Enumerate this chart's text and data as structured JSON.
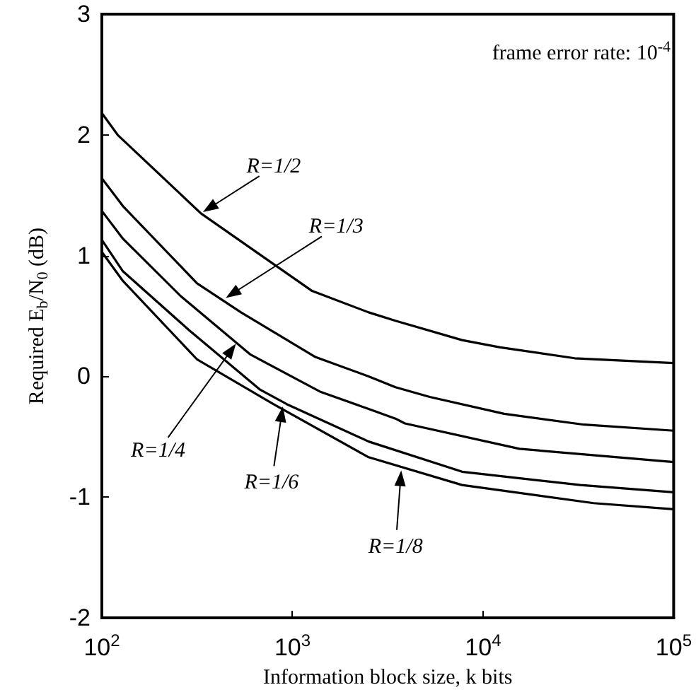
{
  "chart_data": {
    "type": "line",
    "xlabel": "Information block size, k bits",
    "ylabel": "Required E$_{b}$/N$_{0}$ (dB)",
    "log": "x",
    "marker": "none",
    "line_style": "solid",
    "xlim": [
      100,
      100000
    ],
    "xticks": [
      {
        "value": 100,
        "label": "10$^{2}$"
      },
      {
        "value": 1000,
        "label": "10$^{3}$"
      },
      {
        "value": 10000,
        "label": "10$^{4}$"
      },
      {
        "value": 100000,
        "label": "10$^{5}$"
      }
    ],
    "ylim": [
      -2,
      3
    ],
    "yticks": [
      -2,
      -1,
      0,
      1,
      2,
      3
    ],
    "series": [
      {
        "color": "#000000",
        "x": [
          100,
          121,
          331,
          1260,
          2510,
          3470,
          7760,
          12300,
          30200,
          100000
        ],
        "values": [
          2.18,
          2.0,
          1.35,
          0.71,
          0.53,
          0.46,
          0.3,
          0.24,
          0.15,
          0.11
        ]
      },
      {
        "color": "#000000",
        "x": [
          100,
          129,
          316,
          537,
          1320,
          2510,
          3470,
          5250,
          12900,
          33900,
          100000
        ],
        "values": [
          1.64,
          1.41,
          0.77,
          0.53,
          0.16,
          0.0,
          -0.09,
          -0.17,
          -0.31,
          -0.4,
          -0.45
        ]
      },
      {
        "color": "#000000",
        "x": [
          100,
          129,
          257,
          603,
          1410,
          2510,
          3470,
          3890,
          15500,
          100000
        ],
        "values": [
          1.37,
          1.14,
          0.67,
          0.18,
          -0.13,
          -0.27,
          -0.35,
          -0.39,
          -0.6,
          -0.71
        ]
      },
      {
        "color": "#000000",
        "x": [
          100,
          129,
          288,
          676,
          933,
          2510,
          7760,
          32400,
          100000
        ],
        "values": [
          1.13,
          0.87,
          0.38,
          -0.11,
          -0.23,
          -0.54,
          -0.79,
          -0.9,
          -0.96
        ]
      },
      {
        "color": "#000000",
        "x": [
          100,
          129,
          316,
          794,
          2510,
          7760,
          38000,
          100000
        ],
        "values": [
          1.03,
          0.79,
          0.14,
          -0.23,
          -0.67,
          -0.9,
          -1.05,
          -1.1
        ]
      }
    ],
    "annotations": [
      "frame error rate: 10$^{-4}$",
      {
        "text": "R=1/2",
        "x": 339,
        "y": 1.36
      },
      {
        "text": "R=1/3",
        "x": 447,
        "y": 0.65
      },
      {
        "text": "R=1/4",
        "x": 505,
        "y": 0.27
      },
      {
        "text": "R=1/6",
        "x": 890,
        "y": -0.25
      },
      {
        "text": "R=1/8",
        "x": 3720,
        "y": -0.78
      }
    ]
  }
}
